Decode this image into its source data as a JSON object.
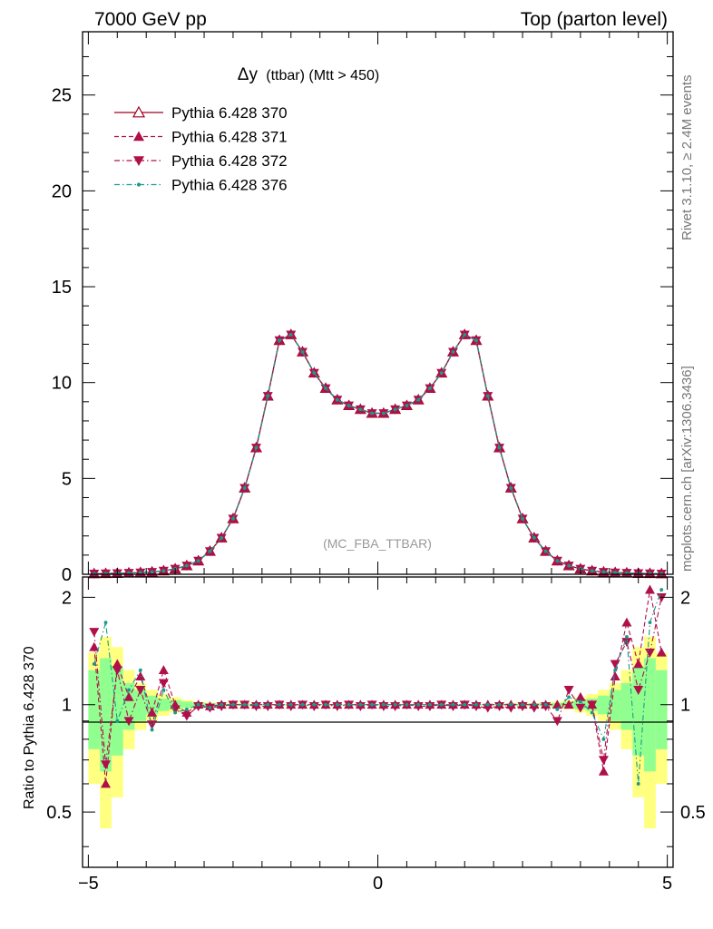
{
  "header": {
    "left": "7000 GeV pp",
    "right": "Top (parton level)"
  },
  "side": {
    "rivet": "Rivet 3.1.10, ≥ 2.4M events",
    "mcplots": "mcplots.cern.ch [arXiv:1306.3436]"
  },
  "chart_data": [
    {
      "type": "line",
      "title_main": "Δy",
      "title_sub": "(ttbar) (Mtt > 450)",
      "watermark": "(MC_FBA_TTBAR)",
      "xlabel": "",
      "ylabel": "",
      "xlim": [
        -5.1,
        5.1
      ],
      "ylim": [
        0,
        28.3
      ],
      "x_ticks": [
        -5,
        0,
        5
      ],
      "y_ticks": [
        0,
        5,
        10,
        15,
        20,
        25
      ],
      "legend_position": "top-left",
      "x": [
        -4.9,
        -4.7,
        -4.5,
        -4.3,
        -4.1,
        -3.9,
        -3.7,
        -3.5,
        -3.3,
        -3.1,
        -2.9,
        -2.7,
        -2.5,
        -2.3,
        -2.1,
        -1.9,
        -1.7,
        -1.5,
        -1.3,
        -1.1,
        -0.9,
        -0.7,
        -0.5,
        -0.3,
        -0.1,
        0.1,
        0.3,
        0.5,
        0.7,
        0.9,
        1.1,
        1.3,
        1.5,
        1.7,
        1.9,
        2.1,
        2.3,
        2.5,
        2.7,
        2.9,
        3.1,
        3.3,
        3.5,
        3.7,
        3.9,
        4.1,
        4.3,
        4.5,
        4.7,
        4.9
      ],
      "series": [
        {
          "name": "Pythia 6.428 370",
          "color": "#a0001e",
          "line": "solid",
          "marker": "open-triangle-up",
          "values": [
            0.03,
            0.04,
            0.05,
            0.07,
            0.09,
            0.12,
            0.18,
            0.28,
            0.45,
            0.7,
            1.2,
            1.9,
            2.9,
            4.5,
            6.6,
            9.3,
            12.2,
            12.5,
            11.6,
            10.5,
            9.7,
            9.1,
            8.8,
            8.6,
            8.4,
            8.4,
            8.6,
            8.8,
            9.1,
            9.7,
            10.5,
            11.6,
            12.5,
            12.2,
            9.3,
            6.6,
            4.5,
            2.9,
            1.9,
            1.2,
            0.7,
            0.45,
            0.28,
            0.18,
            0.12,
            0.09,
            0.07,
            0.05,
            0.04,
            0.03
          ]
        },
        {
          "name": "Pythia 6.428 371",
          "color": "#b0104a",
          "line": "dashed",
          "marker": "filled-triangle-up",
          "values": [
            0.03,
            0.04,
            0.05,
            0.07,
            0.09,
            0.12,
            0.18,
            0.28,
            0.45,
            0.7,
            1.2,
            1.9,
            2.9,
            4.5,
            6.6,
            9.3,
            12.2,
            12.5,
            11.6,
            10.5,
            9.7,
            9.1,
            8.8,
            8.6,
            8.4,
            8.4,
            8.6,
            8.8,
            9.1,
            9.7,
            10.5,
            11.6,
            12.5,
            12.2,
            9.3,
            6.6,
            4.5,
            2.9,
            1.9,
            1.2,
            0.7,
            0.45,
            0.28,
            0.18,
            0.12,
            0.09,
            0.07,
            0.05,
            0.04,
            0.03
          ]
        },
        {
          "name": "Pythia 6.428 372",
          "color": "#b0104a",
          "line": "dashdot",
          "marker": "filled-triangle-down",
          "values": [
            0.03,
            0.04,
            0.05,
            0.07,
            0.09,
            0.12,
            0.18,
            0.28,
            0.45,
            0.7,
            1.2,
            1.9,
            2.9,
            4.5,
            6.6,
            9.3,
            12.2,
            12.5,
            11.6,
            10.5,
            9.7,
            9.1,
            8.8,
            8.6,
            8.4,
            8.4,
            8.6,
            8.8,
            9.1,
            9.7,
            10.5,
            11.6,
            12.5,
            12.2,
            9.3,
            6.6,
            4.5,
            2.9,
            1.9,
            1.2,
            0.7,
            0.45,
            0.28,
            0.18,
            0.12,
            0.09,
            0.07,
            0.05,
            0.04,
            0.03
          ]
        },
        {
          "name": "Pythia 6.428 376",
          "color": "#1a9a8a",
          "line": "dashdot",
          "marker": "dot",
          "values": [
            0.03,
            0.04,
            0.05,
            0.07,
            0.09,
            0.12,
            0.18,
            0.28,
            0.45,
            0.7,
            1.2,
            1.9,
            2.9,
            4.5,
            6.6,
            9.3,
            12.2,
            12.5,
            11.6,
            10.5,
            9.7,
            9.1,
            8.8,
            8.6,
            8.4,
            8.4,
            8.6,
            8.8,
            9.1,
            9.7,
            10.5,
            11.6,
            12.5,
            12.2,
            9.3,
            6.6,
            4.5,
            2.9,
            1.9,
            1.2,
            0.7,
            0.45,
            0.28,
            0.18,
            0.12,
            0.09,
            0.07,
            0.05,
            0.04,
            0.03
          ]
        }
      ]
    },
    {
      "type": "line",
      "ylabel": "Ratio to Pythia 6.428 370",
      "xlim": [
        -5.1,
        5.1
      ],
      "ylim": [
        0.35,
        2.28
      ],
      "x_ticks": [
        -5,
        0,
        5
      ],
      "y_ticks": [
        0.5,
        1,
        2
      ],
      "x": [
        -4.9,
        -4.7,
        -4.5,
        -4.3,
        -4.1,
        -3.9,
        -3.7,
        -3.5,
        -3.3,
        -3.1,
        -2.9,
        -2.7,
        -2.5,
        -2.3,
        -2.1,
        -1.9,
        -1.7,
        -1.5,
        -1.3,
        -1.1,
        -0.9,
        -0.7,
        -0.5,
        -0.3,
        -0.1,
        0.1,
        0.3,
        0.5,
        0.7,
        0.9,
        1.1,
        1.3,
        1.5,
        1.7,
        1.9,
        2.1,
        2.3,
        2.5,
        2.7,
        2.9,
        3.1,
        3.3,
        3.5,
        3.7,
        3.9,
        4.1,
        4.3,
        4.5,
        4.7,
        4.9
      ],
      "band_yellow": [
        0.6,
        0.45,
        0.55,
        0.75,
        0.85,
        0.9,
        0.93,
        0.95,
        0.97,
        0.98,
        0.985,
        0.99,
        0.99,
        0.99,
        0.995,
        0.995,
        0.995,
        0.995,
        0.995,
        0.995,
        0.995,
        0.995,
        0.995,
        0.995,
        0.995,
        0.995,
        0.995,
        0.995,
        0.995,
        0.995,
        0.995,
        0.995,
        0.995,
        0.995,
        0.995,
        0.995,
        0.99,
        0.99,
        0.99,
        0.985,
        0.98,
        0.97,
        0.95,
        0.93,
        0.9,
        0.85,
        0.75,
        0.55,
        0.45,
        0.6
      ],
      "band_green": [
        0.75,
        0.65,
        0.72,
        0.85,
        0.9,
        0.94,
        0.96,
        0.97,
        0.98,
        0.99,
        0.99,
        0.995,
        0.995,
        0.995,
        0.997,
        0.997,
        0.997,
        0.997,
        0.997,
        0.997,
        0.997,
        0.997,
        0.997,
        0.997,
        0.997,
        0.997,
        0.997,
        0.997,
        0.997,
        0.997,
        0.997,
        0.997,
        0.997,
        0.997,
        0.997,
        0.997,
        0.995,
        0.995,
        0.995,
        0.99,
        0.99,
        0.98,
        0.97,
        0.96,
        0.94,
        0.9,
        0.85,
        0.72,
        0.65,
        0.75
      ],
      "band_yellow_hi": [
        1.4,
        1.55,
        1.45,
        1.25,
        1.15,
        1.1,
        1.07,
        1.05,
        1.03,
        1.02,
        1.015,
        1.01,
        1.01,
        1.01,
        1.005,
        1.005,
        1.005,
        1.005,
        1.005,
        1.005,
        1.005,
        1.005,
        1.005,
        1.005,
        1.005,
        1.005,
        1.005,
        1.005,
        1.005,
        1.005,
        1.005,
        1.005,
        1.005,
        1.005,
        1.005,
        1.005,
        1.01,
        1.01,
        1.01,
        1.015,
        1.02,
        1.03,
        1.05,
        1.07,
        1.1,
        1.15,
        1.25,
        1.45,
        1.55,
        1.4
      ],
      "band_green_hi": [
        1.25,
        1.35,
        1.28,
        1.15,
        1.1,
        1.06,
        1.04,
        1.03,
        1.02,
        1.01,
        1.01,
        1.005,
        1.005,
        1.005,
        1.003,
        1.003,
        1.003,
        1.003,
        1.003,
        1.003,
        1.003,
        1.003,
        1.003,
        1.003,
        1.003,
        1.003,
        1.003,
        1.003,
        1.003,
        1.003,
        1.003,
        1.003,
        1.003,
        1.003,
        1.003,
        1.003,
        1.005,
        1.005,
        1.005,
        1.01,
        1.01,
        1.02,
        1.03,
        1.04,
        1.06,
        1.1,
        1.15,
        1.28,
        1.35,
        1.25
      ],
      "series": [
        {
          "name": "Pythia 6.428 371",
          "color": "#b0104a",
          "line": "dashed",
          "marker": "filled-triangle-up",
          "values": [
            1.45,
            0.6,
            1.3,
            1.05,
            1.2,
            0.95,
            1.25,
            1.0,
            0.95,
            1.0,
            0.99,
            1.0,
            1.0,
            1.0,
            1.0,
            1.0,
            1.0,
            1.0,
            1.0,
            1.0,
            1.0,
            1.0,
            1.0,
            1.0,
            1.0,
            1.0,
            1.0,
            1.0,
            1.0,
            1.0,
            1.0,
            1.0,
            1.0,
            1.0,
            1.0,
            1.0,
            1.0,
            1.0,
            1.0,
            1.0,
            1.0,
            1.0,
            1.05,
            1.0,
            0.65,
            1.2,
            1.7,
            1.3,
            2.1,
            1.4
          ]
        },
        {
          "name": "Pythia 6.428 372",
          "color": "#b0104a",
          "line": "dashdot",
          "marker": "filled-triangle-down",
          "values": [
            1.6,
            0.68,
            1.25,
            0.9,
            1.1,
            0.88,
            1.15,
            0.97,
            0.93,
            0.99,
            0.98,
            0.99,
            1.0,
            1.0,
            0.99,
            0.99,
            1.0,
            0.99,
            1.0,
            0.99,
            1.0,
            0.99,
            1.0,
            0.99,
            1.0,
            0.99,
            0.99,
            1.0,
            0.99,
            0.99,
            1.0,
            0.99,
            1.0,
            0.99,
            0.98,
            0.99,
            0.98,
            0.99,
            0.98,
            0.99,
            0.9,
            1.1,
            0.98,
            1.0,
            0.7,
            1.3,
            1.5,
            1.1,
            1.4,
            2.0
          ]
        },
        {
          "name": "Pythia 6.428 376",
          "color": "#1a9a8a",
          "line": "dashdot",
          "marker": "dot",
          "values": [
            1.3,
            1.7,
            0.9,
            1.1,
            1.25,
            0.85,
            1.1,
            0.95,
            0.97,
            1.0,
            0.98,
            1.0,
            1.0,
            1.0,
            1.0,
            1.0,
            1.0,
            1.0,
            1.0,
            1.0,
            1.0,
            1.0,
            1.0,
            1.0,
            1.0,
            1.0,
            1.0,
            1.0,
            1.0,
            1.0,
            1.0,
            1.0,
            1.0,
            1.0,
            1.0,
            1.0,
            1.0,
            1.0,
            1.0,
            1.0,
            0.97,
            1.05,
            1.02,
            0.95,
            0.8,
            1.25,
            1.55,
            0.6,
            1.7,
            2.1
          ]
        }
      ]
    }
  ]
}
